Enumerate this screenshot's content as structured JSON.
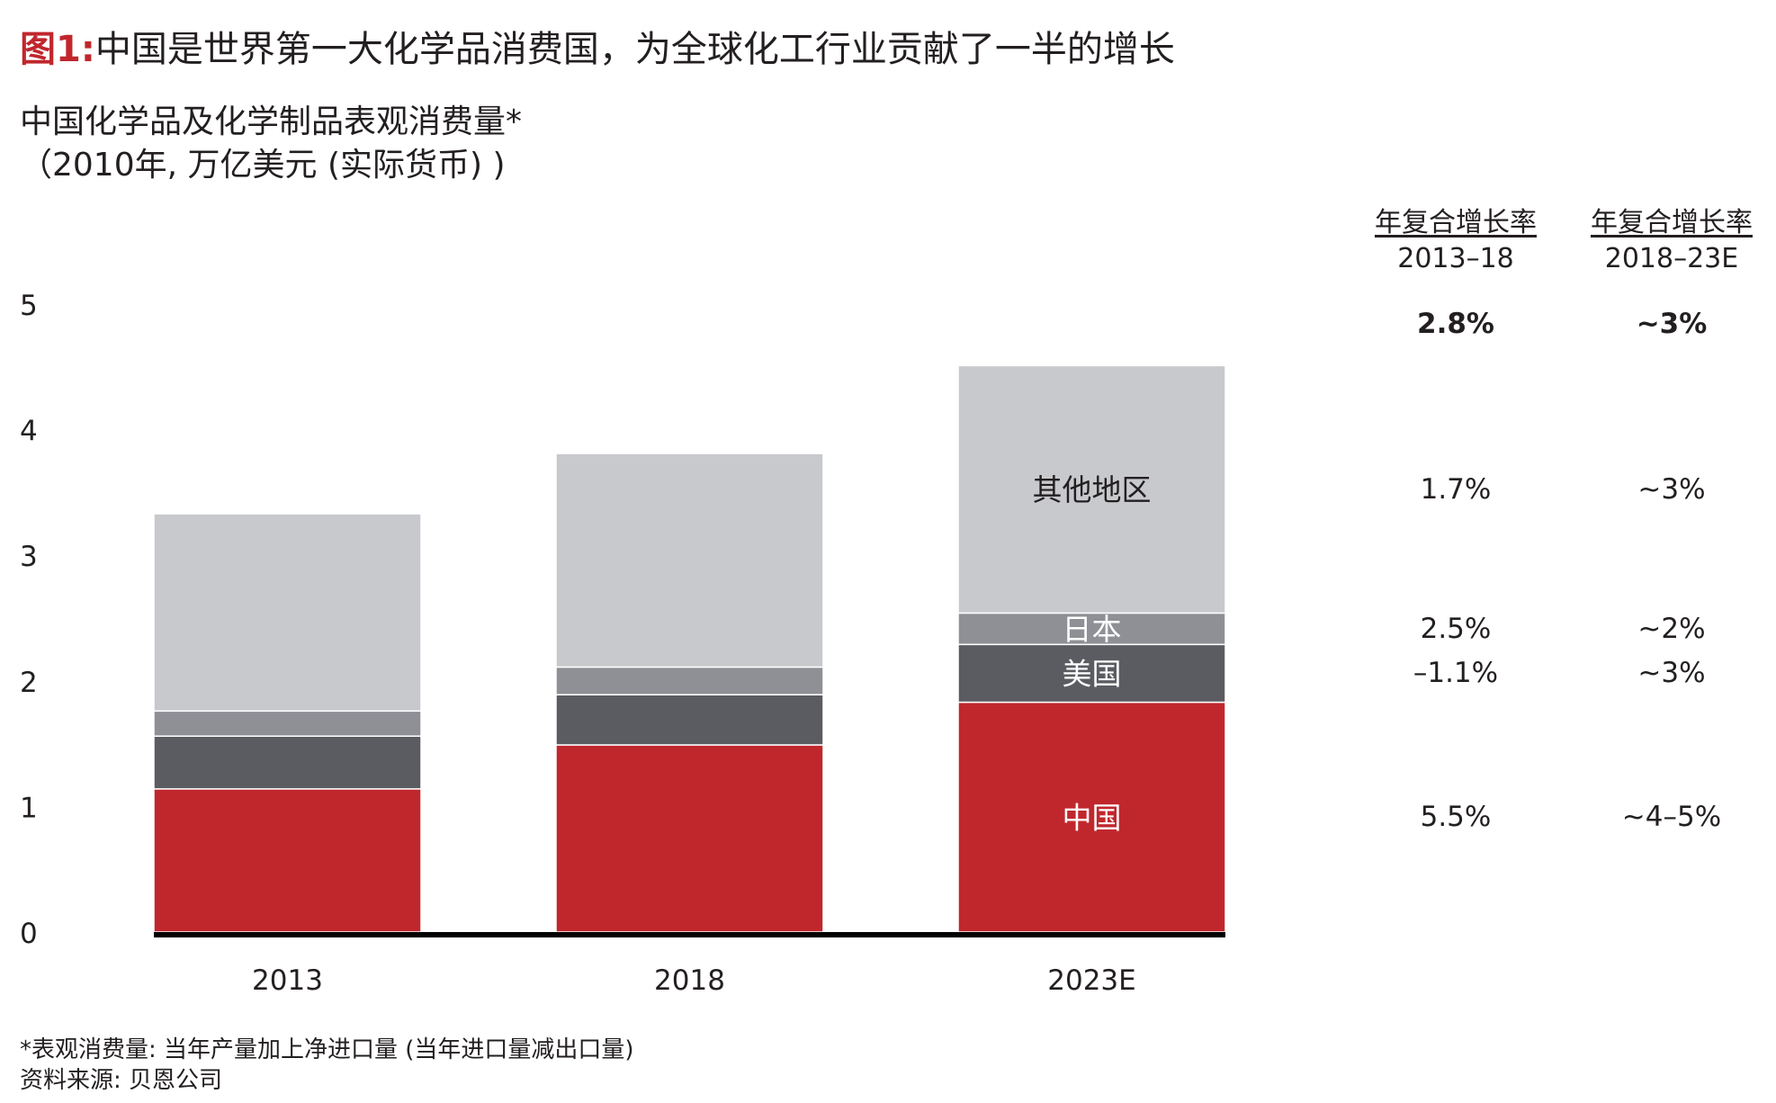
{
  "title": {
    "prefix": "图1:",
    "text": "中国是世界第一大化学品消费国，为全球化工行业贡献了一半的增长"
  },
  "subtitle": {
    "line1": "中国化学品及化学制品表观消费量*",
    "line2": "（2010年, 万亿美元 (实际货币) )"
  },
  "colors": {
    "china": "#c0272d",
    "us": "#5b5c61",
    "japan": "#8e9096",
    "rest": "#c8c9cd",
    "axis": "#000000",
    "accent": "#c0272d"
  },
  "chart_data": {
    "type": "bar",
    "stacked": true,
    "categories": [
      "2013",
      "2018",
      "2023E"
    ],
    "series": [
      {
        "name": "中国",
        "key": "china",
        "values": [
          1.14,
          1.49,
          1.83
        ]
      },
      {
        "name": "美国",
        "key": "us",
        "values": [
          0.42,
          0.4,
          0.46
        ]
      },
      {
        "name": "日本",
        "key": "japan",
        "values": [
          0.2,
          0.22,
          0.25
        ]
      },
      {
        "name": "其他地区",
        "key": "rest",
        "values": [
          1.57,
          1.7,
          1.97
        ]
      }
    ],
    "yticks": [
      "0",
      "1",
      "2",
      "3",
      "4",
      "5"
    ],
    "ylim": [
      0,
      5
    ],
    "grid": false,
    "segment_labels_on": "2023E"
  },
  "cagr": {
    "headers": [
      {
        "title": "年复合增长率",
        "period": "2013–18"
      },
      {
        "title": "年复合增长率",
        "period": "2018–23E"
      }
    ],
    "rows": [
      {
        "key": "total",
        "bold": true,
        "values": [
          "2.8%",
          "~3%"
        ]
      },
      {
        "key": "rest",
        "bold": false,
        "values": [
          "1.7%",
          "~3%"
        ]
      },
      {
        "key": "japan",
        "bold": false,
        "values": [
          "2.5%",
          "~2%"
        ]
      },
      {
        "key": "us",
        "bold": false,
        "values": [
          "–1.1%",
          "~3%"
        ]
      },
      {
        "key": "china",
        "bold": false,
        "values": [
          "5.5%",
          "~4–5%"
        ]
      }
    ]
  },
  "footnotes": {
    "note": "*表观消费量: 当年产量加上净进口量 (当年进口量减出口量)",
    "source": "资料来源: 贝恩公司"
  }
}
